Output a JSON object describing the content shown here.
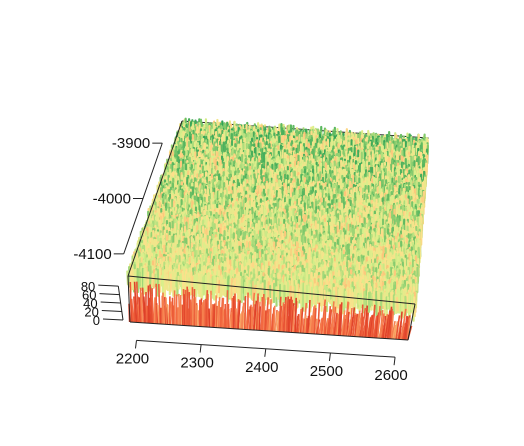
{
  "chart_data": {
    "type": "surface-3d",
    "title": "",
    "xlabel": "",
    "ylabel": "",
    "zlabel": "",
    "x_ticks": [
      2200,
      2300,
      2400,
      2500,
      2600
    ],
    "xlim": [
      2190,
      2620
    ],
    "y_ticks": [
      -3900,
      -4000,
      -4100
    ],
    "ylim": [
      -4140,
      -3860
    ],
    "z_ticks": [
      0,
      20,
      40,
      60,
      80
    ],
    "zlim": [
      0,
      85
    ],
    "colormap": "red-yellow-green",
    "colors": {
      "low": "#d7301f",
      "mid_low": "#f46d43",
      "mid": "#fee08b",
      "mid_high": "#d9ef8b",
      "high": "#66bd63",
      "top": "#1a9850"
    },
    "box": true
  }
}
